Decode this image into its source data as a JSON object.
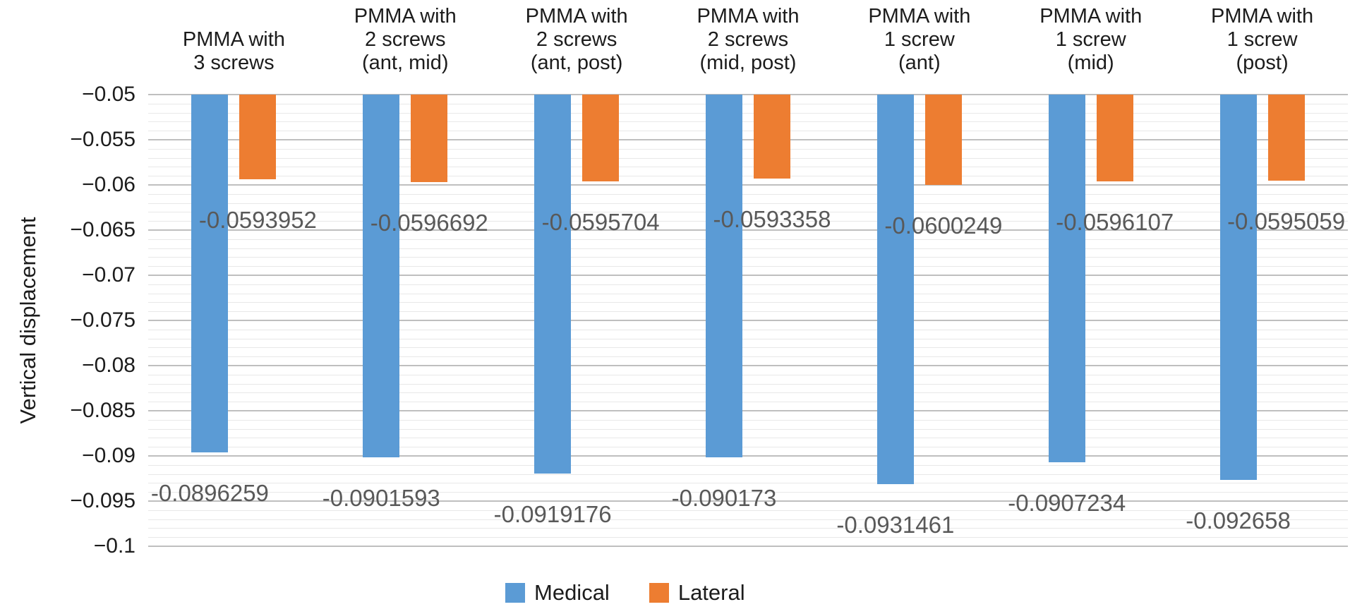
{
  "chart_data": {
    "type": "bar",
    "title": "",
    "ylabel": "Vertical displacement",
    "xlabel": "",
    "ylim": [
      -0.1,
      -0.05
    ],
    "y_major_step": 0.005,
    "y_minor_step": 0.001,
    "grid": true,
    "legend_position": "bottom",
    "y_tick_labels": [
      "−0.05",
      "−0.055",
      "−0.06",
      "−0.065",
      "−0.07",
      "−0.075",
      "−0.08",
      "−0.085",
      "−0.09",
      "−0.095",
      "−0.1"
    ],
    "categories": [
      "PMMA with\n3 screws",
      "PMMA with\n2 screws\n(ant, mid)",
      "PMMA with\n2 screws\n(ant, post)",
      "PMMA with\n2 screws\n(mid, post)",
      "PMMA with\n1 screw\n(ant)",
      "PMMA with\n1 screw\n(mid)",
      "PMMA with\n1 screw\n(post)"
    ],
    "series": [
      {
        "name": "Medical",
        "color": "#5B9BD5",
        "values": [
          -0.0896259,
          -0.0901593,
          -0.0919176,
          -0.090173,
          -0.0931461,
          -0.0907234,
          -0.092658
        ],
        "labels": [
          "-0.0896259",
          "-0.0901593",
          "-0.0919176",
          "-0.090173",
          "-0.0931461",
          "-0.0907234",
          "-0.092658"
        ]
      },
      {
        "name": "Lateral",
        "color": "#ED7D31",
        "values": [
          -0.0593952,
          -0.0596692,
          -0.0595704,
          -0.0593358,
          -0.0600249,
          -0.0596107,
          -0.0595059
        ],
        "labels": [
          "-0.0593952",
          "-0.0596692",
          "-0.0595704",
          "-0.0593358",
          "-0.0600249",
          "-0.0596107",
          "-0.0595059"
        ]
      }
    ]
  },
  "colors": {
    "background": "#FFFFFF",
    "major_gridline": "#BFBFBF",
    "minor_gridline": "#E8E8E8",
    "data_label_text": "#595959",
    "axis_text": "#1C1C1C"
  }
}
